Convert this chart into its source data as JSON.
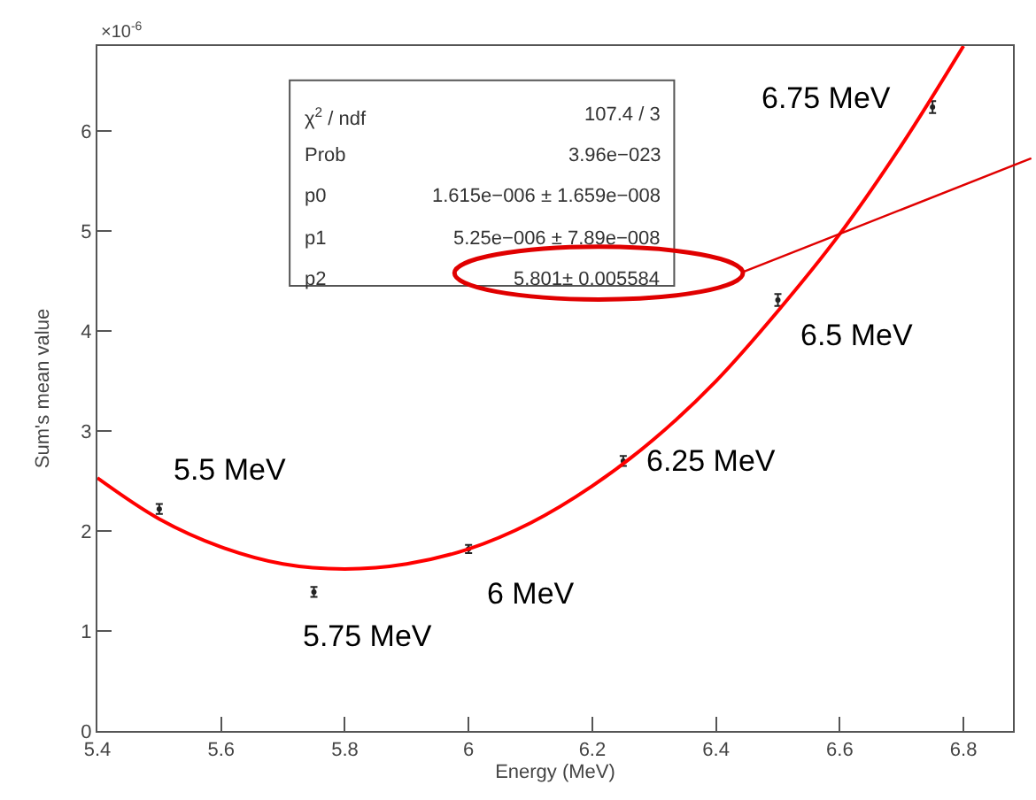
{
  "chart_data": {
    "type": "scatter",
    "xlabel": "Energy (MeV)",
    "ylabel": "Sum's mean value",
    "xlim": [
      5.4,
      6.88
    ],
    "ylim": [
      0,
      6.85
    ],
    "xticks": [
      5.4,
      5.6,
      5.8,
      6,
      6.2,
      6.4,
      6.6,
      6.8
    ],
    "yticks": [
      0,
      1,
      2,
      3,
      4,
      5,
      6
    ],
    "grid": false,
    "series": [
      {
        "marker": "circle",
        "color": "#222222",
        "x": [
          5.5,
          5.75,
          6,
          6.25,
          6.5,
          6.75
        ],
        "values": [
          2.22,
          1.39,
          1.82,
          2.7,
          4.31,
          6.24
        ],
        "errors": [
          0.05,
          0.05,
          0.04,
          0.05,
          0.06,
          0.06
        ]
      },
      {
        "type": "line",
        "color": "#ff0000",
        "x": [
          5.4,
          5.5,
          5.6,
          5.7,
          5.8,
          5.9,
          6.0,
          6.1,
          6.2,
          6.3,
          6.4,
          6.5,
          6.6,
          6.7,
          6.8
        ],
        "values": [
          2.53,
          2.12,
          1.84,
          1.67,
          1.62,
          1.67,
          1.82,
          2.08,
          2.45,
          2.92,
          3.5,
          4.2,
          4.97,
          5.86,
          6.85
        ]
      }
    ],
    "annotations": [
      "×10$^{-6}$",
      "χ$^{2}$ / ndf",
      "107.4 / 3",
      "Prob",
      "3.96e−023",
      "p0",
      "1.615e−006 ± 1.659e−008",
      "p1",
      "5.25e−006 ± 7.89e−008",
      "p2",
      "5.801± 0.005584",
      {
        "text": "5.5 MeV",
        "x": 5.5,
        "y": 2.22
      },
      {
        "text": "5.75 MeV",
        "x": 5.75,
        "y": 1.39
      },
      {
        "text": "6 MeV",
        "x": 6,
        "y": 1.82
      },
      {
        "text": "6.25 MeV",
        "x": 6.25,
        "y": 2.7
      },
      {
        "text": "6.5 MeV",
        "x": 6.5,
        "y": 4.31
      },
      {
        "text": "6.75 MeV",
        "x": 6.75,
        "y": 6.24
      }
    ]
  }
}
